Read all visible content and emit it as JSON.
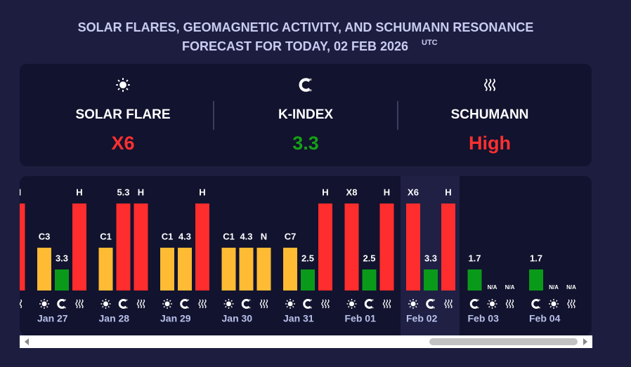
{
  "header": {
    "title": "SOLAR FLARES, GEOMAGNETIC ACTIVITY, AND SCHUMANN RESONANCE",
    "subtitle": "FORECAST FOR TODAY, 02 FEB 2026",
    "timezone": "UTC"
  },
  "summary": [
    {
      "label": "SOLAR FLARE",
      "value": "X6",
      "color": "#ff3030"
    },
    {
      "label": "K-INDEX",
      "value": "3.3",
      "color": "#16a016"
    },
    {
      "label": "SCHUMANN",
      "value": "High",
      "color": "#ff3030"
    }
  ],
  "days": [
    {
      "date": null,
      "bars": [
        {
          "metric": 2,
          "label": "H",
          "color": "#ff2d2d"
        }
      ]
    },
    {
      "date": "Jan 27",
      "bars": [
        {
          "metric": 0,
          "label": "C3",
          "color": "#ffbb33"
        },
        {
          "metric": 1,
          "label": "3.3",
          "color": "#0a9a1a"
        },
        {
          "metric": 2,
          "label": "H",
          "color": "#ff2d2d"
        }
      ]
    },
    {
      "date": "Jan 28",
      "bars": [
        {
          "metric": 0,
          "label": "C1",
          "color": "#ffbb33"
        },
        {
          "metric": 1,
          "label": "5.3",
          "color": "#ff2d2d"
        },
        {
          "metric": 2,
          "label": "H",
          "color": "#ff2d2d"
        }
      ]
    },
    {
      "date": "Jan 29",
      "bars": [
        {
          "metric": 0,
          "label": "C1",
          "color": "#ffbb33"
        },
        {
          "metric": 1,
          "label": "4.3",
          "color": "#ffbb33"
        },
        {
          "metric": 2,
          "label": "H",
          "color": "#ff2d2d"
        }
      ]
    },
    {
      "date": "Jan 30",
      "bars": [
        {
          "metric": 0,
          "label": "C1",
          "color": "#ffbb33"
        },
        {
          "metric": 1,
          "label": "4.3",
          "color": "#ffbb33"
        },
        {
          "metric": 2,
          "label": "N",
          "color": "#ffbb33"
        }
      ]
    },
    {
      "date": "Jan 31",
      "bars": [
        {
          "metric": 0,
          "label": "C7",
          "color": "#ffbb33"
        },
        {
          "metric": 1,
          "label": "2.5",
          "color": "#0a9a1a"
        },
        {
          "metric": 2,
          "label": "H",
          "color": "#ff2d2d"
        }
      ]
    },
    {
      "date": "Feb 01",
      "bars": [
        {
          "metric": 0,
          "label": "X8",
          "color": "#ff2d2d"
        },
        {
          "metric": 1,
          "label": "2.5",
          "color": "#0a9a1a"
        },
        {
          "metric": 2,
          "label": "H",
          "color": "#ff2d2d"
        }
      ]
    },
    {
      "date": "Feb 02",
      "selected": true,
      "bars": [
        {
          "metric": 0,
          "label": "X6",
          "color": "#ff2d2d"
        },
        {
          "metric": 1,
          "label": "3.3",
          "color": "#0a9a1a"
        },
        {
          "metric": 2,
          "label": "H",
          "color": "#ff2d2d"
        }
      ]
    },
    {
      "date": "Feb 03",
      "bars": [
        {
          "metric": 1,
          "label": "1.7",
          "color": "#0a9a1a"
        },
        {
          "metric": 0,
          "label": "N/A",
          "color": null
        },
        {
          "metric": 2,
          "label": "N/A",
          "color": null
        }
      ]
    },
    {
      "date": "Feb 04",
      "bars": [
        {
          "metric": 1,
          "label": "1.7",
          "color": "#0a9a1a"
        },
        {
          "metric": 0,
          "label": "N/A",
          "color": null
        },
        {
          "metric": 2,
          "label": "N/A",
          "color": null
        }
      ]
    }
  ]
}
